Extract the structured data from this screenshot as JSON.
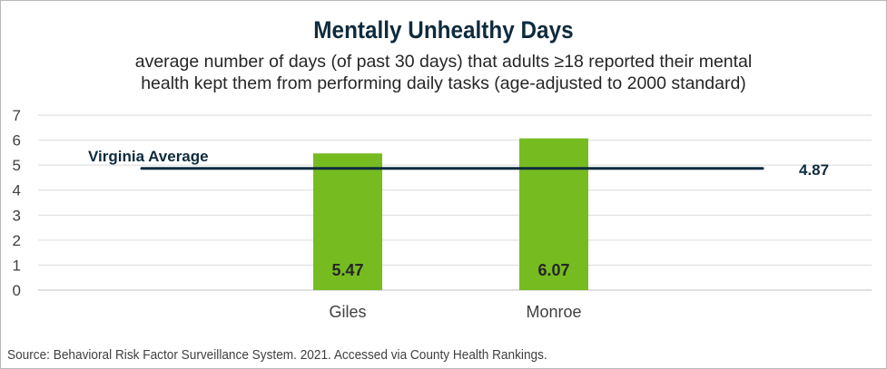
{
  "header": {
    "title": "Mentally Unhealthy Days",
    "subtitle_line1": "average number of days (of past 30 days) that adults ≥18 reported their mental",
    "subtitle_line2": "health kept them from performing daily tasks (age-adjusted to 2000 standard)"
  },
  "footer": {
    "source": "Source:  Behavioral Risk Factor Surveillance System. 2021. Accessed via County Health Rankings."
  },
  "chart_data": {
    "type": "bar",
    "title": "Mentally Unhealthy Days",
    "categories": [
      "Giles",
      "Monroe"
    ],
    "values": [
      5.47,
      6.07
    ],
    "data_labels": [
      "5.47",
      "6.07"
    ],
    "ylim": [
      0,
      7
    ],
    "yticks": [
      0,
      1,
      2,
      3,
      4,
      5,
      6,
      7
    ],
    "grid": true,
    "bar_color": "#76bc21",
    "reference_line": {
      "label": "Virginia Average",
      "value": 4.87,
      "value_label": "4.87",
      "color": "#0f2b3d"
    }
  }
}
